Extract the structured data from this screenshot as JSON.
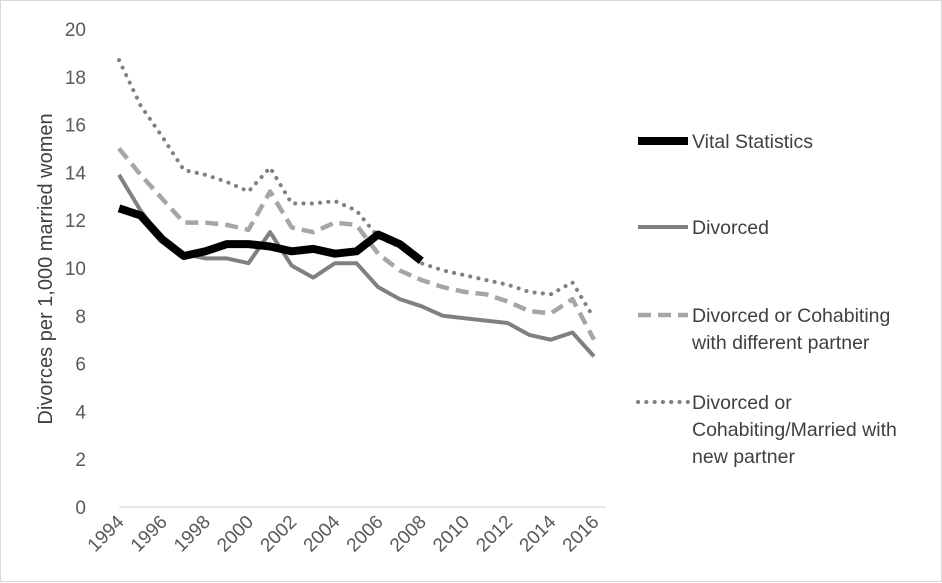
{
  "chart_data": {
    "type": "line",
    "title": "",
    "xlabel": "",
    "ylabel": "Divorces per 1,000 married women",
    "x": [
      1994,
      1995,
      1996,
      1997,
      1998,
      1999,
      2000,
      2001,
      2002,
      2003,
      2004,
      2005,
      2006,
      2007,
      2008,
      2009,
      2010,
      2011,
      2012,
      2013,
      2014,
      2015,
      2016
    ],
    "x_ticks": [
      "1994",
      "1996",
      "1998",
      "2000",
      "2002",
      "2004",
      "2006",
      "2008",
      "2010",
      "2012",
      "2014",
      "2016"
    ],
    "y_ticks": [
      "0",
      "2",
      "4",
      "6",
      "8",
      "10",
      "12",
      "14",
      "16",
      "18",
      "20"
    ],
    "ylim": [
      0,
      20
    ],
    "grid": false,
    "legend_position": "right",
    "series": [
      {
        "name": "Vital Statistics",
        "style": "solid-thick",
        "color": "#000000",
        "values": [
          12.5,
          12.2,
          11.2,
          10.5,
          10.7,
          11.0,
          11.0,
          10.9,
          10.7,
          10.8,
          10.6,
          10.7,
          11.4,
          11.0,
          10.3,
          null,
          null,
          null,
          null,
          null,
          null,
          null,
          null
        ]
      },
      {
        "name": "Divorced",
        "style": "solid",
        "color": "#808080",
        "values": [
          13.9,
          12.4,
          11.2,
          10.6,
          10.4,
          10.4,
          10.2,
          11.5,
          10.1,
          9.6,
          10.2,
          10.2,
          9.2,
          8.7,
          8.4,
          8.0,
          7.9,
          7.8,
          7.7,
          7.2,
          7.0,
          7.3,
          6.3
        ]
      },
      {
        "name": "Divorced or Cohabiting with different partner",
        "legend_lines": [
          "Divorced or Cohabiting",
          "with different partner"
        ],
        "style": "dashed",
        "color": "#a6a6a6",
        "values": [
          15.0,
          13.9,
          12.9,
          11.9,
          11.9,
          11.8,
          11.6,
          13.2,
          11.7,
          11.5,
          11.9,
          11.8,
          10.6,
          9.9,
          9.5,
          9.2,
          9.0,
          8.9,
          8.6,
          8.2,
          8.1,
          8.7,
          7.0
        ]
      },
      {
        "name": "Divorced or Cohabiting/Married with new partner",
        "legend_lines": [
          "Divorced or",
          "Cohabiting/Married with",
          "new partner"
        ],
        "style": "dotted",
        "color": "#808080",
        "values": [
          18.7,
          16.8,
          15.5,
          14.1,
          13.9,
          13.6,
          13.2,
          14.2,
          12.7,
          12.7,
          12.8,
          12.4,
          11.3,
          10.9,
          10.2,
          9.9,
          9.7,
          9.5,
          9.3,
          9.0,
          8.9,
          9.4,
          7.9
        ]
      }
    ]
  }
}
